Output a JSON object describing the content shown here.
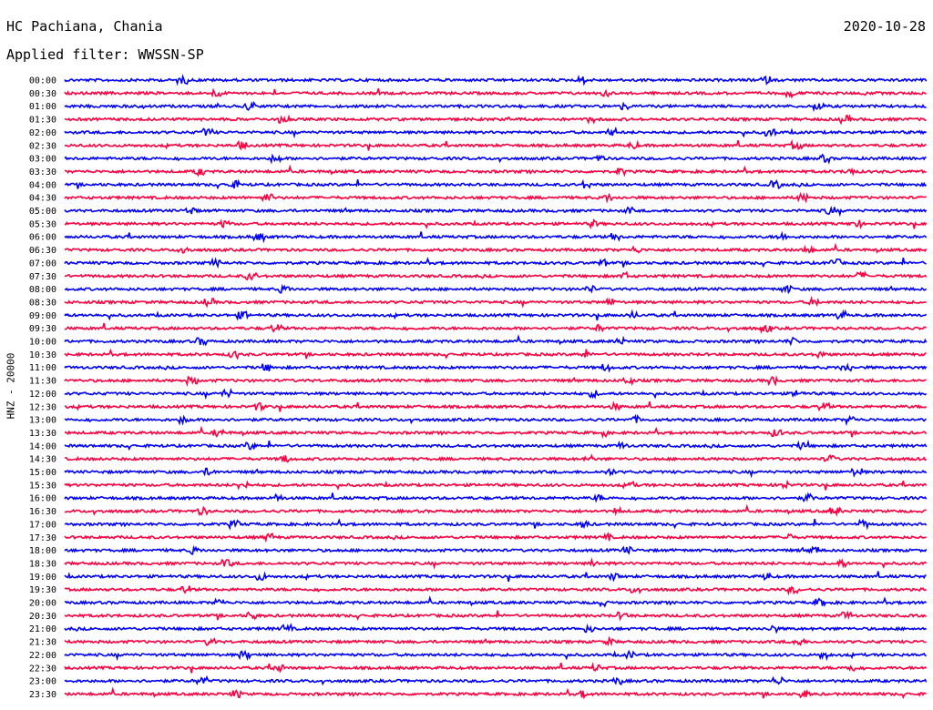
{
  "header": {
    "station": "HC Pachiana, Chania",
    "date": "2020-10-28",
    "filter": "Applied filter: WWSSN-SP",
    "channel": "HNZ - 20000"
  },
  "colors": {
    "even_hour": "#0000ff",
    "half_hour": "#ff0040",
    "text": "#000000"
  },
  "chart_data": {
    "type": "line",
    "title": "HC Pachiana, Chania",
    "ylabel": "HNZ - 20000",
    "row_labels": [
      "00:00",
      "00:30",
      "01:00",
      "01:30",
      "02:00",
      "02:30",
      "03:00",
      "03:30",
      "04:00",
      "04:30",
      "05:00",
      "05:30",
      "06:00",
      "06:30",
      "07:00",
      "07:30",
      "08:00",
      "08:30",
      "09:00",
      "09:30",
      "10:00",
      "10:30",
      "11:00",
      "11:30",
      "12:00",
      "12:30",
      "13:00",
      "13:30",
      "14:00",
      "14:30",
      "15:00",
      "15:30",
      "16:00",
      "16:30",
      "17:00",
      "17:30",
      "18:00",
      "18:30",
      "19:00",
      "19:30",
      "20:00",
      "20:30",
      "21:00",
      "21:30",
      "22:00",
      "22:30",
      "23:00",
      "23:30"
    ],
    "trace_colors": [
      "blue",
      "red"
    ],
    "x_range_minutes": [
      0,
      30
    ],
    "grid": false,
    "description_of_series": "helicorder traces, one per 30-minute row"
  }
}
